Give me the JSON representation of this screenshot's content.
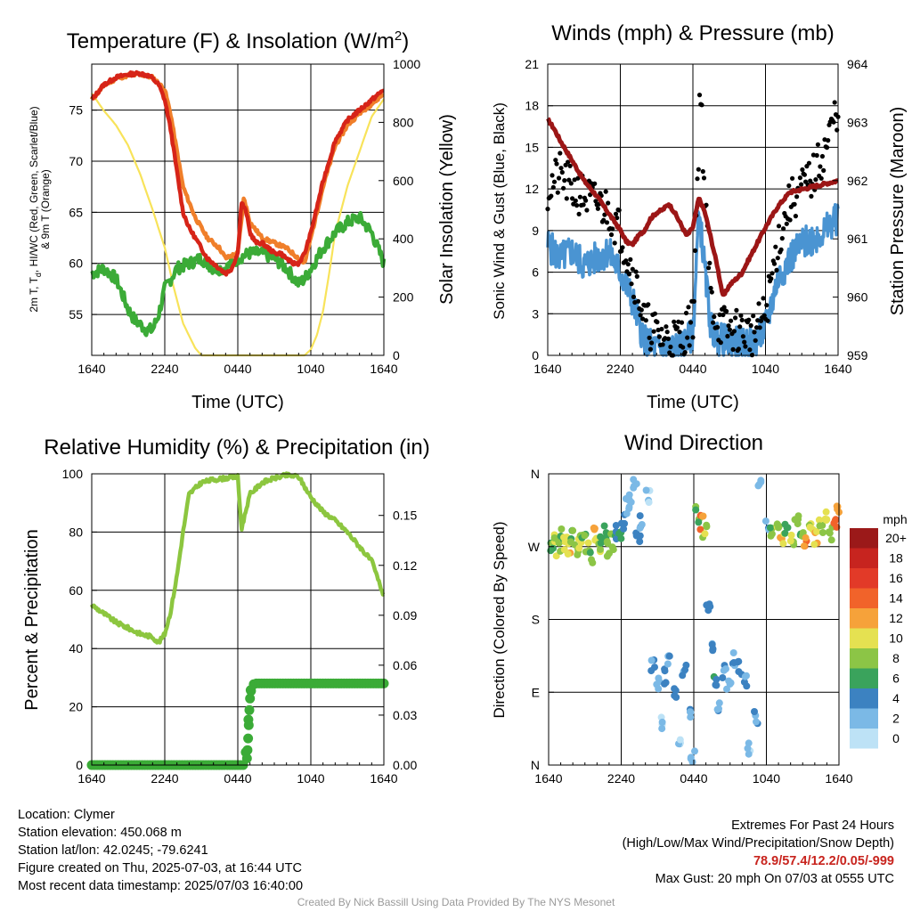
{
  "colors": {
    "temp": "#d62418",
    "hiwc": "#1f8a2e",
    "heat_index": "#f07f2a",
    "dewpoint": "#3bab37",
    "insolation": "#f8e35a",
    "wind": "#4a94d2",
    "gust": "#000000",
    "pressure": "#9c1616",
    "rh": "#8cc63f",
    "precip": "#3bab37"
  },
  "temperature_panel": {
    "title": "Temperature (F) & Insolation (W/m",
    "title_sup": "2",
    "title_end": ")",
    "ylabel_left_1": "2m T, T",
    "ylabel_left_sub": "d",
    "ylabel_left_2": ", HI/WC (Red, Green, Scarlet/Blue)",
    "ylabel_left_3": "& 9m T (Orange)",
    "ylabel_right": "Solar Insolation (Yellow)",
    "xlabel": "Time (UTC)"
  },
  "wind_panel": {
    "title": "Winds (mph) & Pressure (mb)",
    "ylabel_left": "Sonic Wind & Gust (Blue, Black)",
    "ylabel_right": "Station Pressure (Maroon)",
    "xlabel": "Time (UTC)"
  },
  "rh_panel": {
    "title": "Relative Humidity (%) & Precipitation (in)",
    "ylabel_left": "Percent & Precipitation"
  },
  "direction_panel": {
    "title": "Wind Direction",
    "ylabel": "Direction (Colored By Speed)",
    "colorbar_title": "mph",
    "colorbar_labels": [
      "20+",
      "18",
      "16",
      "14",
      "12",
      "10",
      "8",
      "6",
      "4",
      "2",
      "0"
    ],
    "colorbar_colors": [
      "#9b1919",
      "#c7241f",
      "#e23a28",
      "#f1632a",
      "#f6a23a",
      "#e5e151",
      "#8cc546",
      "#3aa35c",
      "#3c82c1",
      "#7bb9e6",
      "#bde2f6"
    ]
  },
  "chart_data": [
    {
      "type": "line",
      "panel": "temperature",
      "x_ticks": [
        "1640",
        "2240",
        "0440",
        "1040",
        "1640"
      ],
      "y_left_ticks": [
        "55",
        "60",
        "65",
        "70",
        "75"
      ],
      "y_left_range": [
        51,
        79.5
      ],
      "y_right_ticks": [
        "0",
        "200",
        "400",
        "600",
        "800",
        "1000"
      ],
      "y_right_range": [
        0,
        1000
      ],
      "series": [
        {
          "key": "temp_2m",
          "axis": "left",
          "x": [
            0,
            1,
            2,
            3,
            4,
            4.8,
            5.5,
            6,
            6.5,
            7,
            7.5,
            8,
            8.5,
            9,
            9.5,
            10,
            10.5,
            11,
            11.5,
            12,
            12.3,
            12.7,
            13,
            13.5,
            14,
            14.5,
            15,
            15.5,
            16,
            16.5,
            17,
            17.5,
            18,
            19,
            20,
            21,
            22,
            23,
            24
          ],
          "y": [
            76,
            77.5,
            78.2,
            78.5,
            78.6,
            78.3,
            77.5,
            76,
            73,
            69,
            65,
            63.5,
            62.5,
            61.5,
            60.5,
            60,
            59.5,
            59,
            59.5,
            61,
            66,
            65,
            63,
            62,
            62,
            61.5,
            61,
            61,
            60.5,
            60,
            60,
            61,
            63,
            68,
            72,
            74,
            75,
            76,
            77
          ]
        },
        {
          "key": "temp_9m",
          "axis": "left",
          "x": [
            0,
            1,
            2,
            3,
            4,
            5,
            6,
            6.5,
            7,
            7.5,
            8,
            8.5,
            9,
            9.5,
            10,
            10.5,
            11,
            12,
            12.5,
            13,
            14,
            15,
            16,
            17,
            17.5,
            18,
            19,
            20,
            21,
            22,
            23,
            24
          ],
          "y": [
            76,
            77.4,
            78.1,
            78.4,
            78.5,
            78.2,
            77,
            74.5,
            71,
            67.5,
            66,
            64.5,
            63.5,
            62.5,
            62,
            61.5,
            60.5,
            61,
            66.5,
            64,
            62.5,
            62,
            61.5,
            60.5,
            60,
            62.5,
            67.5,
            71.5,
            73.5,
            74.7,
            75.6,
            76.6
          ]
        },
        {
          "key": "dewpoint",
          "axis": "left",
          "x": [
            0,
            1,
            2,
            2.5,
            3,
            3.5,
            4,
            4.5,
            5,
            5.5,
            6,
            7,
            8,
            9,
            10,
            11,
            12,
            13,
            14,
            15,
            16,
            17,
            17.5,
            18,
            19,
            20,
            21,
            22,
            23,
            24
          ],
          "y": [
            59,
            59.5,
            58.5,
            57,
            55.5,
            54.5,
            54,
            53.5,
            53.5,
            55,
            57.5,
            59.5,
            60,
            60.5,
            59.5,
            59.5,
            60.5,
            61,
            61,
            60.5,
            59.5,
            58,
            58.5,
            59.5,
            61.5,
            63,
            64,
            64.5,
            63,
            60
          ]
        },
        {
          "key": "insolation",
          "axis": "right",
          "x": [
            0,
            0.5,
            1,
            2,
            3,
            4,
            5,
            6,
            6.7,
            7.5,
            8.5,
            9,
            10,
            11,
            12,
            13,
            14,
            15,
            16,
            17,
            17.5,
            18,
            18.5,
            19,
            19.5,
            20,
            21,
            22,
            23,
            24
          ],
          "y": [
            900,
            870,
            840,
            790,
            720,
            620,
            500,
            370,
            240,
            110,
            25,
            0,
            0,
            0,
            0,
            0,
            0,
            0,
            0,
            0,
            0,
            20,
            70,
            150,
            280,
            420,
            580,
            700,
            820,
            880
          ]
        }
      ]
    },
    {
      "type": "line",
      "panel": "wind_pressure",
      "x_ticks": [
        "1640",
        "2240",
        "0440",
        "1040",
        "1640"
      ],
      "y_left_ticks": [
        "0",
        "3",
        "6",
        "9",
        "12",
        "15",
        "18",
        "21"
      ],
      "y_left_range": [
        0,
        21
      ],
      "y_right_ticks": [
        "959",
        "960",
        "961",
        "962",
        "963",
        "964"
      ],
      "y_right_range": [
        959,
        964
      ],
      "series": [
        {
          "key": "wind_speed",
          "axis": "left",
          "x": [
            0,
            1,
            2,
            3,
            4,
            5,
            6,
            6.5,
            7,
            7.5,
            8,
            9,
            10,
            11,
            12,
            12.5,
            13,
            13.5,
            14,
            15,
            16,
            17,
            18,
            19,
            20,
            21,
            22,
            23,
            24
          ],
          "y": [
            8,
            7,
            7.5,
            6.5,
            7,
            7.5,
            6,
            5,
            4,
            2.5,
            1,
            0.5,
            0.5,
            0.6,
            1.5,
            10.5,
            6,
            2,
            1.2,
            1,
            0.8,
            0.8,
            2,
            5.5,
            7,
            8,
            8.5,
            9,
            10
          ]
        },
        {
          "key": "gust",
          "axis": "left",
          "x": [
            0,
            1,
            2,
            3,
            4,
            5,
            6,
            6.5,
            7,
            7.5,
            8,
            9,
            10,
            11,
            12,
            12.5,
            12.6,
            13,
            13.5,
            14,
            15,
            16,
            17,
            18,
            19,
            20,
            21,
            22,
            23,
            24
          ],
          "y": [
            12,
            13,
            12,
            11.5,
            11,
            10.5,
            9,
            7.5,
            6,
            4.5,
            2.5,
            1.5,
            1.2,
            1.3,
            2.5,
            16,
            20,
            11,
            4,
            2.5,
            1.8,
            1.8,
            1.5,
            3,
            8,
            11,
            12,
            13,
            15,
            18
          ]
        },
        {
          "key": "pressure",
          "axis": "right",
          "x": [
            0,
            0.5,
            1,
            2,
            3,
            4,
            5,
            6,
            6.5,
            7,
            7.5,
            8,
            8.5,
            9,
            9.5,
            10,
            10.5,
            11,
            11.5,
            12,
            12.5,
            13,
            13.5,
            14,
            14.5,
            15,
            16,
            17,
            18,
            19,
            20,
            21,
            22,
            23,
            24
          ],
          "y": [
            963.05,
            962.9,
            962.7,
            962.35,
            962.0,
            961.75,
            961.45,
            961.15,
            960.95,
            960.9,
            961.05,
            961.15,
            961.35,
            961.45,
            961.5,
            961.6,
            961.45,
            961.25,
            961.05,
            961.2,
            961.7,
            961.45,
            961.0,
            960.55,
            960.0,
            960.2,
            960.4,
            960.8,
            961.2,
            961.55,
            961.8,
            961.85,
            961.9,
            961.95,
            962.0
          ]
        }
      ]
    },
    {
      "type": "line",
      "panel": "rh_precip",
      "x_ticks": [
        "1640",
        "2240",
        "0440",
        "1040",
        "1640"
      ],
      "y_left_ticks": [
        "0",
        "20",
        "40",
        "60",
        "80",
        "100"
      ],
      "y_left_range": [
        0,
        100
      ],
      "y_right_ticks": [
        "0.00",
        "0.03",
        "0.06",
        "0.09",
        "0.12",
        "0.15"
      ],
      "y_right_range": [
        0,
        0.175
      ],
      "series": [
        {
          "key": "rh",
          "axis": "left",
          "x": [
            0,
            1,
            2,
            3,
            4,
            5,
            5.5,
            6,
            6.5,
            7,
            7.5,
            8,
            9,
            10,
            11,
            12,
            12.3,
            12.7,
            13,
            14,
            15,
            16,
            17,
            18,
            19,
            20,
            21,
            22,
            23,
            24
          ],
          "y": [
            55,
            52,
            49,
            47,
            45,
            44,
            42,
            45,
            53,
            65,
            80,
            93,
            97,
            98,
            98.5,
            99,
            81,
            88,
            93,
            97,
            98.5,
            99.5,
            99,
            92,
            87,
            84,
            80,
            75,
            70,
            58
          ]
        },
        {
          "key": "precip",
          "axis": "right",
          "x": [
            0,
            1,
            2,
            3,
            4,
            5,
            6,
            7,
            8,
            9,
            10,
            11,
            12,
            12.5,
            12.6,
            12.7,
            12.8,
            12.9,
            13,
            13.1,
            13.2,
            13.4,
            14,
            15,
            16,
            17,
            18,
            19,
            20,
            21,
            22,
            23,
            24
          ],
          "y": [
            0,
            0,
            0,
            0,
            0,
            0,
            0,
            0,
            0,
            0,
            0,
            0,
            0,
            0,
            0.005,
            0.01,
            0.02,
            0.03,
            0.04,
            0.045,
            0.048,
            0.049,
            0.049,
            0.049,
            0.049,
            0.049,
            0.049,
            0.049,
            0.049,
            0.049,
            0.049,
            0.049,
            0.049
          ]
        }
      ]
    },
    {
      "type": "scatter",
      "panel": "wind_direction",
      "x_ticks": [
        "1640",
        "2240",
        "0440",
        "1040",
        "1640"
      ],
      "y_ticks": [
        "N",
        "W",
        "S",
        "E",
        "N"
      ],
      "y_range": [
        0,
        360
      ],
      "y_ticks_degrees": [
        360,
        270,
        180,
        90,
        0
      ],
      "points": [
        [
          0.2,
          272,
          7
        ],
        [
          0.5,
          280,
          9
        ],
        [
          0.8,
          268,
          8
        ],
        [
          1.1,
          285,
          6
        ],
        [
          1.4,
          275,
          9
        ],
        [
          1.7,
          270,
          10
        ],
        [
          2,
          282,
          7
        ],
        [
          2.3,
          265,
          8
        ],
        [
          2.6,
          278,
          9
        ],
        [
          2.9,
          290,
          6
        ],
        [
          3.2,
          273,
          8
        ],
        [
          3.5,
          260,
          7
        ],
        [
          3.8,
          285,
          10
        ],
        [
          4.1,
          271,
          8
        ],
        [
          4.4,
          279,
          6
        ],
        [
          4.7,
          290,
          5
        ],
        [
          5,
          268,
          7
        ],
        [
          5.3,
          276,
          8
        ],
        [
          5.6,
          288,
          4
        ],
        [
          5.9,
          283,
          5
        ],
        [
          6.2,
          300,
          3
        ],
        [
          6.5,
          320,
          2
        ],
        [
          6.8,
          335,
          1
        ],
        [
          7.1,
          345,
          1
        ],
        [
          7.4,
          280,
          4
        ],
        [
          7.7,
          300,
          2
        ],
        [
          8.2,
          330,
          1
        ],
        [
          8.6,
          120,
          3
        ],
        [
          9,
          100,
          2
        ],
        [
          9.3,
          50,
          1
        ],
        [
          9.7,
          110,
          3
        ],
        [
          10,
          130,
          2
        ],
        [
          10.4,
          90,
          4
        ],
        [
          10.8,
          30,
          1
        ],
        [
          11.2,
          115,
          3
        ],
        [
          11.6,
          60,
          2
        ],
        [
          11.9,
          10,
          1
        ],
        [
          12.3,
          310,
          6
        ],
        [
          12.6,
          300,
          12
        ],
        [
          12.9,
          290,
          8
        ],
        [
          13.2,
          200,
          4
        ],
        [
          13.5,
          140,
          3
        ],
        [
          13.8,
          100,
          4
        ],
        [
          14.1,
          70,
          2
        ],
        [
          14.5,
          115,
          3
        ],
        [
          14.9,
          95,
          1
        ],
        [
          15.3,
          130,
          2
        ],
        [
          15.8,
          120,
          4
        ],
        [
          16.2,
          105,
          3
        ],
        [
          16.6,
          20,
          1
        ],
        [
          17.1,
          60,
          2
        ],
        [
          17.5,
          350,
          1
        ],
        [
          18.1,
          300,
          3
        ],
        [
          18.5,
          285,
          7
        ],
        [
          18.9,
          295,
          8
        ],
        [
          19.3,
          278,
          10
        ],
        [
          19.7,
          290,
          6
        ],
        [
          20.1,
          282,
          9
        ],
        [
          20.5,
          300,
          8
        ],
        [
          20.9,
          285,
          7
        ],
        [
          21.3,
          276,
          12
        ],
        [
          21.7,
          292,
          9
        ],
        [
          22.1,
          280,
          11
        ],
        [
          22.5,
          295,
          8
        ],
        [
          22.9,
          305,
          10
        ],
        [
          23.3,
          287,
          7
        ],
        [
          23.7,
          299,
          14
        ],
        [
          24,
          310,
          12
        ]
      ]
    }
  ],
  "info": {
    "location": "Location: Clymer",
    "elevation": "Station elevation: 450.068 m",
    "latlon": "Station lat/lon: 42.0245; -79.6241",
    "created": "Figure created on Thu, 2025-07-03, at 16:44 UTC",
    "recent": "Most recent data timestamp: 2025/07/03 16:40:00",
    "extremes_title": "Extremes For Past 24 Hours",
    "extremes_sub": "(High/Low/Max Wind/Precipitation/Snow Depth)",
    "extremes_values": "78.9/57.4/12.2/0.05/-999",
    "max_gust": "Max Gust: 20 mph On 07/03 at 0555 UTC",
    "credit": "Created By Nick Bassill Using Data Provided By The NYS Mesonet"
  }
}
